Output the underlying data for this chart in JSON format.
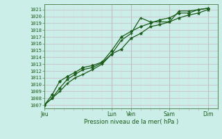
{
  "background_color": "#cceee8",
  "plot_bg_color": "#cceee8",
  "grid_color": "#c8c0cc",
  "grid_color_minor": "#ddd0dd",
  "line_color": "#1a5c1a",
  "tick_color": "#c0a0c0",
  "ylabel_values": [
    1007,
    1008,
    1009,
    1010,
    1011,
    1012,
    1013,
    1014,
    1015,
    1016,
    1017,
    1018,
    1019,
    1020,
    1021
  ],
  "ylim": [
    1006.5,
    1021.8
  ],
  "xlabel": "Pression niveau de la mer( hPa )",
  "xtick_labels": [
    "Jeu",
    "Lun",
    "Ven",
    "Sam",
    "Dim"
  ],
  "xtick_positions": [
    0,
    3.5,
    4.5,
    6.5,
    8.5
  ],
  "xlim": [
    0,
    9.0
  ],
  "series1_x": [
    0.0,
    0.4,
    0.8,
    1.2,
    1.6,
    2.0,
    2.5,
    3.0,
    3.5,
    4.0,
    4.5,
    5.0,
    5.5,
    6.0,
    6.5,
    7.0,
    7.5,
    8.0,
    8.5
  ],
  "series1_y": [
    1007.0,
    1008.0,
    1009.0,
    1010.2,
    1011.0,
    1011.5,
    1012.2,
    1013.0,
    1014.5,
    1016.5,
    1017.5,
    1019.8,
    1019.2,
    1019.2,
    1019.2,
    1020.8,
    1020.8,
    1021.0,
    1021.2
  ],
  "series2_x": [
    0.0,
    0.4,
    0.8,
    1.2,
    1.6,
    2.0,
    2.5,
    3.0,
    3.5,
    4.0,
    4.5,
    5.0,
    5.5,
    6.0,
    6.5,
    7.0,
    7.5,
    8.0,
    8.5
  ],
  "series2_y": [
    1007.0,
    1008.5,
    1010.5,
    1011.2,
    1011.8,
    1012.5,
    1012.8,
    1013.3,
    1015.0,
    1017.0,
    1017.8,
    1018.5,
    1019.0,
    1019.5,
    1019.8,
    1020.5,
    1020.5,
    1021.0,
    1021.2
  ],
  "series3_x": [
    0.0,
    0.4,
    0.8,
    1.2,
    1.6,
    2.0,
    2.5,
    3.0,
    3.5,
    4.0,
    4.5,
    5.0,
    5.5,
    6.0,
    6.5,
    7.0,
    7.5,
    8.0,
    8.5
  ],
  "series3_y": [
    1007.0,
    1008.0,
    1009.5,
    1010.8,
    1011.5,
    1012.2,
    1012.5,
    1013.2,
    1014.5,
    1015.2,
    1016.8,
    1017.5,
    1018.5,
    1018.8,
    1019.2,
    1019.8,
    1020.2,
    1020.5,
    1021.0
  ],
  "vline_positions": [
    0,
    3.5,
    4.5,
    6.5,
    8.5
  ],
  "vline_color": "#a0b8a0",
  "spine_color": "#558855"
}
